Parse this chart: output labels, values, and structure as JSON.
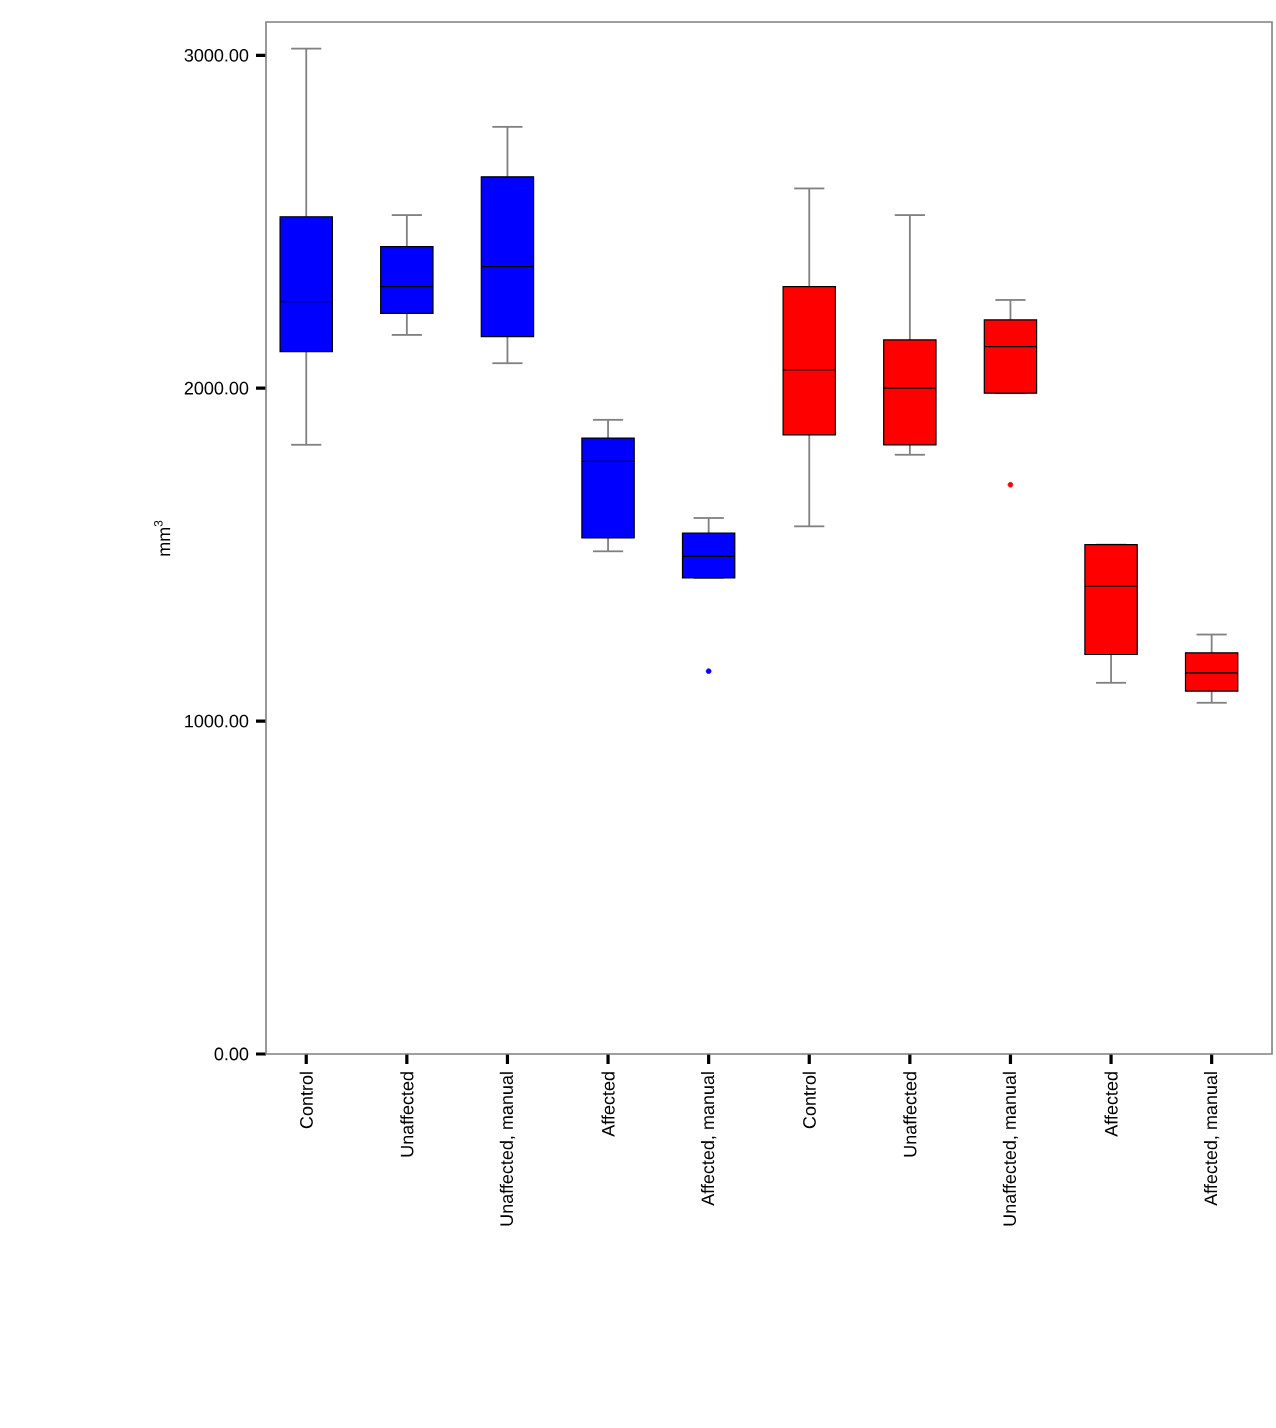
{
  "chart_data": {
    "type": "box",
    "ylabel": "mm$^{3}$",
    "categories": [
      "Control",
      "Unaffected",
      "Unaffected, manual",
      "Affected",
      "Affected, manual",
      "Control",
      "Unaffected",
      "Unaffected, manual",
      "Affected",
      "Affected, manual"
    ],
    "colors": [
      "#0000ff",
      "#0000ff",
      "#0000ff",
      "#0000ff",
      "#0000ff",
      "#ff0000",
      "#ff0000",
      "#ff0000",
      "#ff0000",
      "#ff0000"
    ],
    "boxes": [
      {
        "low": 1830,
        "q1": 2110,
        "median": 2260,
        "q3": 2515,
        "high": 3020
      },
      {
        "low": 2160,
        "q1": 2225,
        "median": 2305,
        "q3": 2425,
        "high": 2520
      },
      {
        "low": 2075,
        "q1": 2155,
        "median": 2365,
        "q3": 2635,
        "high": 2785
      },
      {
        "low": 1510,
        "q1": 1550,
        "median": 1780,
        "q3": 1850,
        "high": 1905
      },
      {
        "low": 1430,
        "q1": 1430,
        "median": 1495,
        "q3": 1565,
        "high": 1610,
        "outliers": [
          1150
        ]
      },
      {
        "low": 1585,
        "q1": 1860,
        "median": 2055,
        "q3": 2305,
        "high": 2600
      },
      {
        "low": 1800,
        "q1": 1830,
        "median": 2000,
        "q3": 2145,
        "high": 2520
      },
      {
        "low": 1985,
        "q1": 1985,
        "median": 2125,
        "q3": 2205,
        "high": 2265,
        "outliers": [
          1710
        ]
      },
      {
        "low": 1115,
        "q1": 1200,
        "median": 1405,
        "q3": 1530,
        "high": 1530
      },
      {
        "low": 1055,
        "q1": 1090,
        "median": 1145,
        "q3": 1205,
        "high": 1260
      }
    ],
    "ylim": [
      0,
      3100
    ],
    "yticks": [
      {
        "value": 0,
        "label": "0.00"
      },
      {
        "value": 1000,
        "label": "1000.00"
      },
      {
        "value": 2000,
        "label": "2000.00"
      },
      {
        "value": 3000,
        "label": "3000.00"
      }
    ]
  }
}
